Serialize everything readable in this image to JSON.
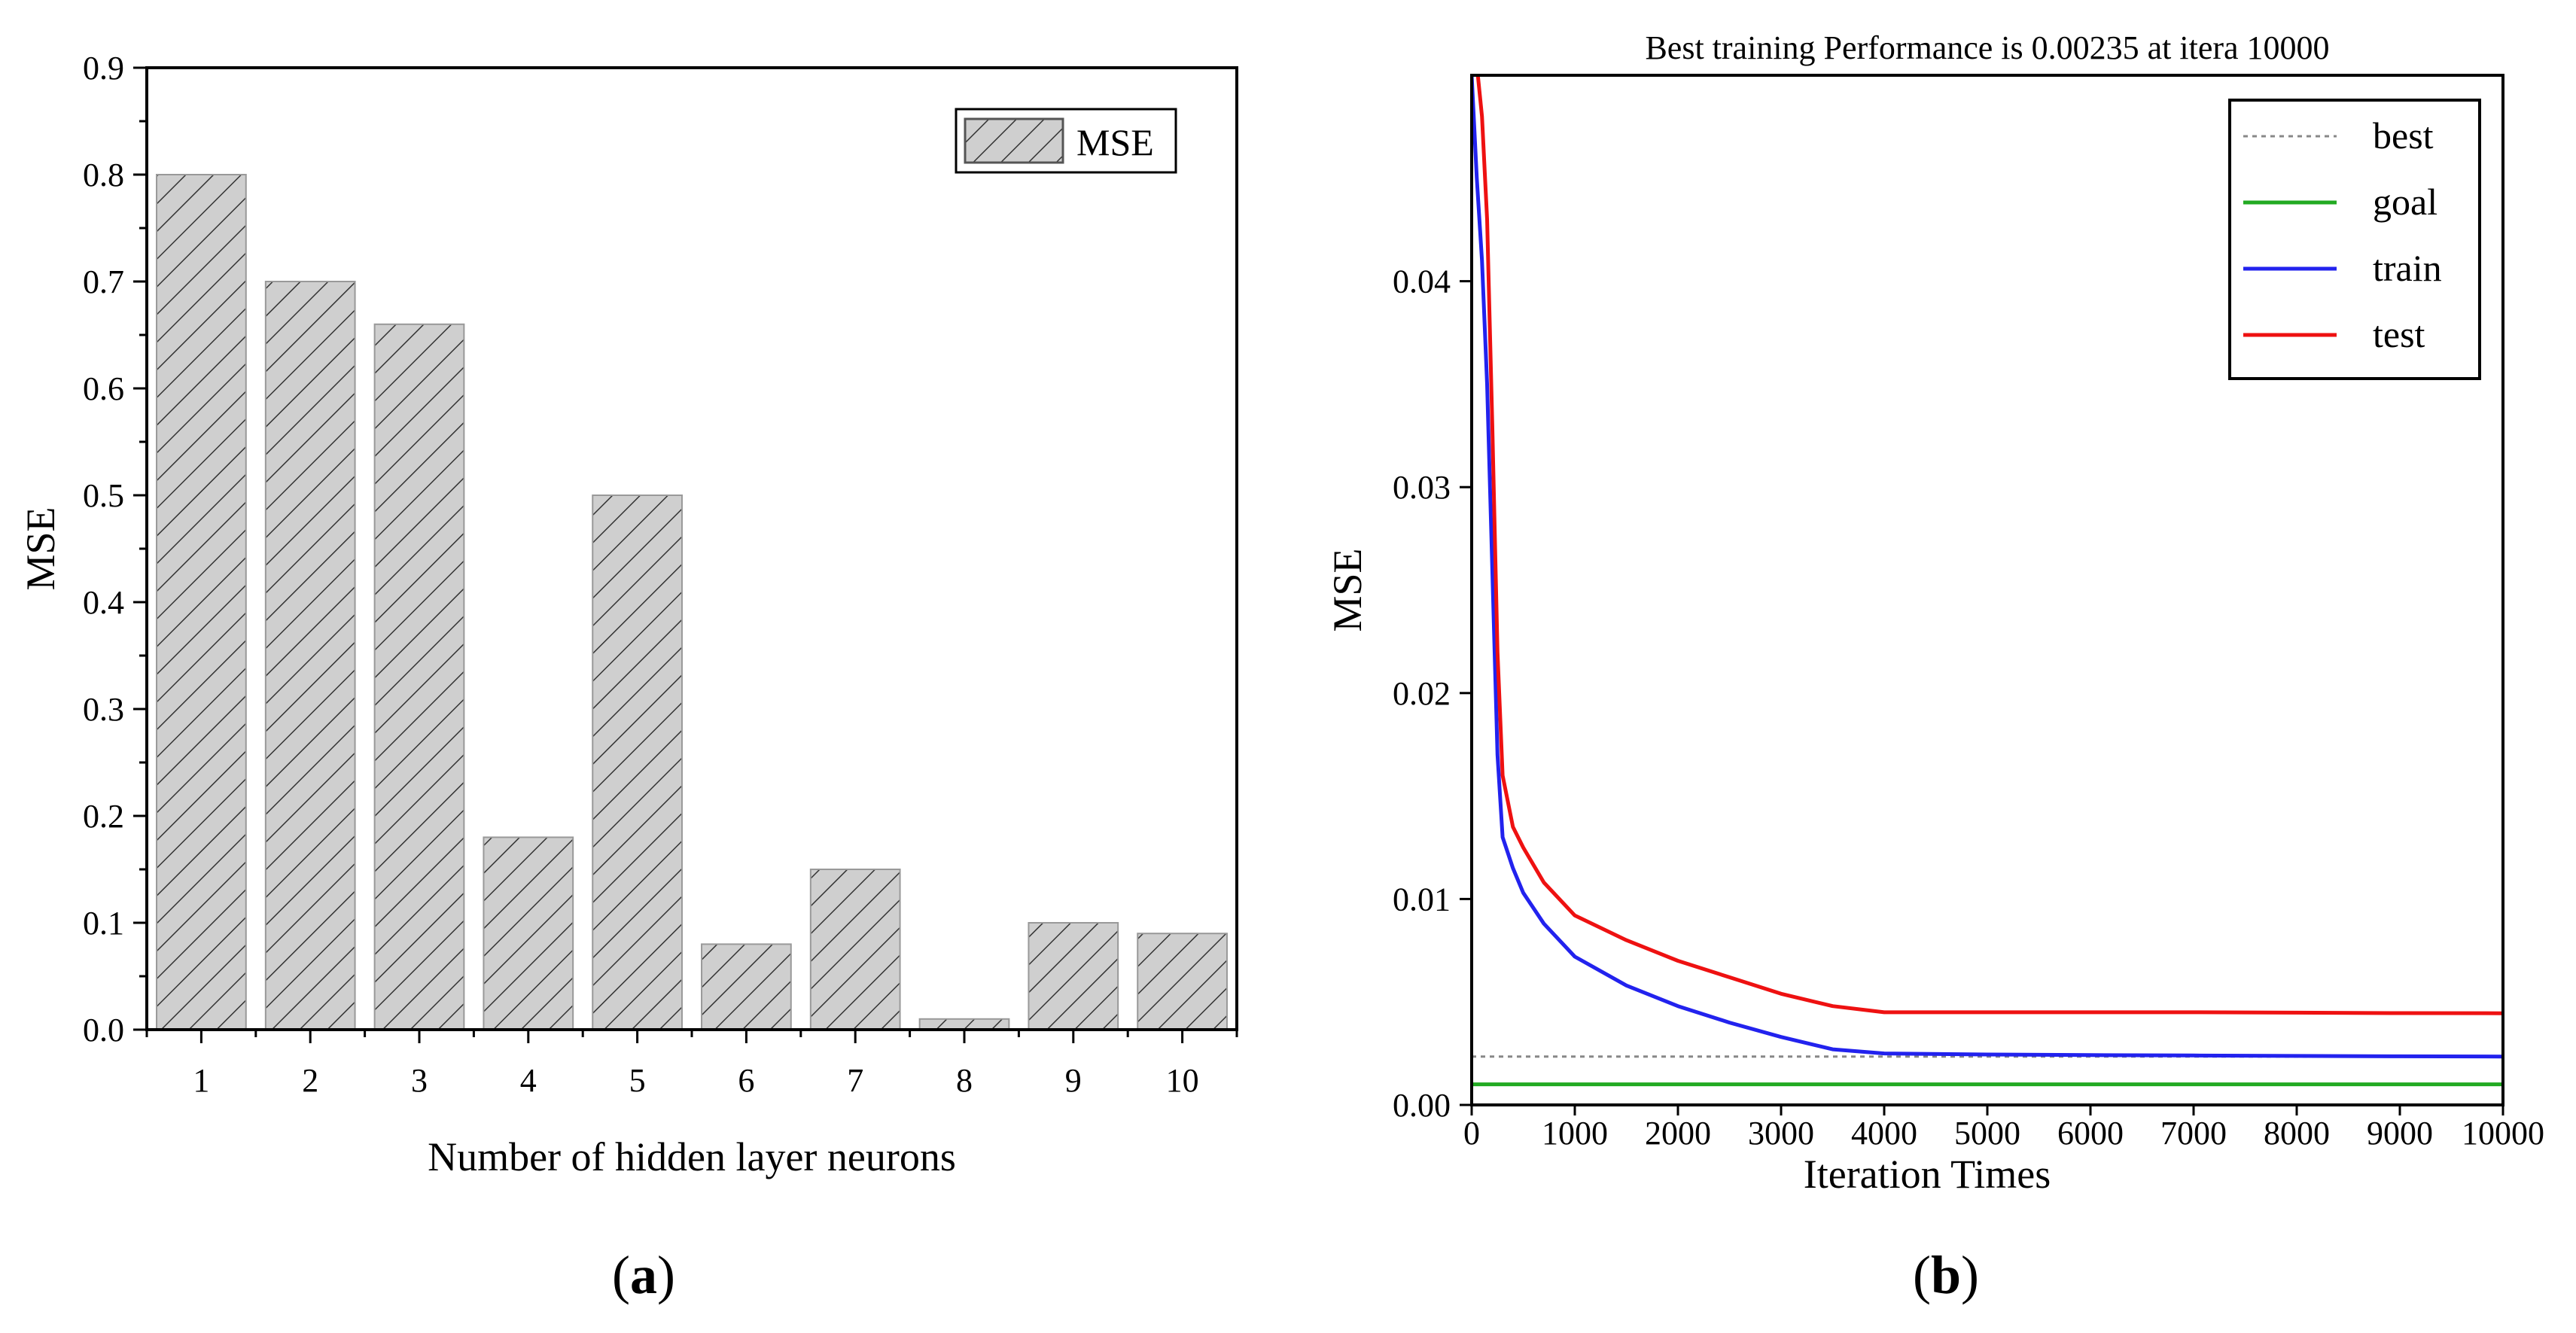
{
  "chart_data": [
    {
      "type": "bar",
      "panel_label": "a",
      "title": "",
      "xlabel": "Number of hidden layer neurons",
      "ylabel": "MSE",
      "categories": [
        "1",
        "2",
        "3",
        "4",
        "5",
        "6",
        "7",
        "8",
        "9",
        "10"
      ],
      "series": [
        {
          "name": "MSE",
          "values": [
            0.8,
            0.7,
            0.66,
            0.18,
            0.5,
            0.08,
            0.15,
            0.01,
            0.1,
            0.09
          ]
        }
      ],
      "ylim": [
        0,
        0.9
      ],
      "yticks": [
        "0.0",
        "0.1",
        "0.2",
        "0.3",
        "0.4",
        "0.5",
        "0.6",
        "0.7",
        "0.8",
        "0.9"
      ],
      "legend": {
        "position": "top-right",
        "entries": [
          "MSE"
        ]
      },
      "colors": {
        "bar_fill": "#cfcfcf",
        "hatch": "#333333"
      }
    },
    {
      "type": "line",
      "panel_label": "b",
      "title": "Best training Performance is 0.00235 at itera 10000",
      "xlabel": "Iteration Times",
      "ylabel": "MSE",
      "xlim": [
        0,
        10000
      ],
      "ylim": [
        0,
        0.05
      ],
      "xticks": [
        "0",
        "1000",
        "2000",
        "3000",
        "4000",
        "5000",
        "6000",
        "7000",
        "8000",
        "9000",
        "10000"
      ],
      "yticks": [
        "0.00",
        "0.01",
        "0.02",
        "0.03",
        "0.04"
      ],
      "legend": {
        "position": "top-right",
        "entries": [
          "best",
          "goal",
          "train",
          "test"
        ]
      },
      "series": [
        {
          "name": "best",
          "style": "dotted",
          "color": "#888888",
          "x": [
            0,
            10000
          ],
          "y": [
            0.00235,
            0.00235
          ]
        },
        {
          "name": "goal",
          "style": "solid",
          "color": "#22aa22",
          "x": [
            0,
            10000
          ],
          "y": [
            0.001,
            0.001
          ]
        },
        {
          "name": "train",
          "style": "solid",
          "color": "#2222ee",
          "x": [
            0,
            50,
            100,
            150,
            200,
            250,
            300,
            400,
            500,
            700,
            1000,
            1500,
            2000,
            2500,
            3000,
            3500,
            4000,
            5000,
            6000,
            7000,
            8000,
            9000,
            10000
          ],
          "y": [
            0.05,
            0.045,
            0.041,
            0.035,
            0.026,
            0.017,
            0.013,
            0.0115,
            0.0103,
            0.0088,
            0.0072,
            0.0058,
            0.0048,
            0.004,
            0.0033,
            0.0027,
            0.0025,
            0.00245,
            0.00242,
            0.0024,
            0.00238,
            0.00236,
            0.00235
          ]
        },
        {
          "name": "test",
          "style": "solid",
          "color": "#ee1111",
          "x": [
            60,
            100,
            150,
            200,
            250,
            300,
            400,
            500,
            700,
            1000,
            1500,
            2000,
            2500,
            3000,
            3500,
            4000,
            5000,
            6000,
            7000,
            8000,
            9000,
            10000
          ],
          "y": [
            0.05,
            0.048,
            0.043,
            0.033,
            0.022,
            0.016,
            0.0135,
            0.0125,
            0.0108,
            0.0092,
            0.008,
            0.007,
            0.0062,
            0.0054,
            0.0048,
            0.0045,
            0.0045,
            0.0045,
            0.0045,
            0.00448,
            0.00446,
            0.00445
          ]
        }
      ]
    }
  ]
}
